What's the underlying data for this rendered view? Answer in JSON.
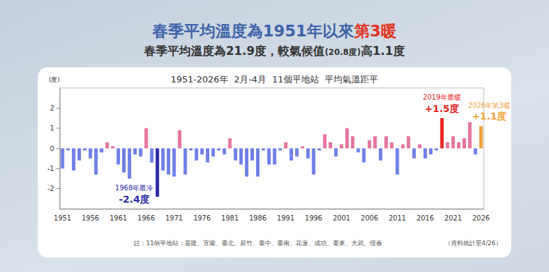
{
  "title": "春季平均溫度為1951年以來第3暖",
  "title_highlight": "第3暖",
  "subtitle": "春季平均溫度為21.9度，較氣候值(20.8度)高1.1度",
  "footnote": "註：11個平地站：基隆、宜蘭、臺北、新竹、臺中、臺南、花蓮、成功、臺東、大武、恆春",
  "source": "（資料統計至4/26）",
  "chart_data": {
    "type": "bar",
    "title": "1951-2026年  2月-4月  11個平地站  平均氣溫距平",
    "y_label": "(度)",
    "categories": [
      "1951",
      null,
      null,
      null,
      null,
      "1956",
      null,
      null,
      null,
      null,
      "1961",
      null,
      null,
      null,
      null,
      "1966",
      null,
      null,
      null,
      null,
      "1971",
      null,
      null,
      null,
      null,
      "1976",
      null,
      null,
      null,
      null,
      "1981",
      null,
      null,
      null,
      null,
      "1986",
      null,
      null,
      null,
      null,
      "1991",
      null,
      null,
      null,
      null,
      "1996",
      null,
      null,
      null,
      null,
      "2001",
      null,
      null,
      null,
      null,
      "2006",
      null,
      null,
      null,
      null,
      "2011",
      null,
      null,
      null,
      null,
      "2016",
      null,
      null,
      null,
      null,
      "2021",
      null,
      null,
      null,
      null,
      "2026"
    ],
    "values": [
      -1.0,
      -0.1,
      -1.1,
      -0.6,
      -0.1,
      -0.5,
      -1.3,
      -0.2,
      0.3,
      0.1,
      -0.8,
      -1.2,
      -1.5,
      -0.3,
      -0.4,
      1.0,
      -0.7,
      -2.4,
      -1.1,
      -1.3,
      -1.4,
      0.9,
      -1.3,
      -0.1,
      -0.6,
      -0.3,
      -0.7,
      -0.4,
      -0.1,
      -0.3,
      0.5,
      -0.6,
      -0.8,
      -1.4,
      -0.6,
      -1.4,
      -0.1,
      -0.8,
      -0.8,
      -0.1,
      0.3,
      -0.6,
      -0.4,
      0.1,
      -0.5,
      -1.3,
      -0.1,
      0.7,
      0.3,
      -0.4,
      0.2,
      1.0,
      0.6,
      -0.2,
      -0.7,
      0.4,
      0.6,
      -0.6,
      0.6,
      0.3,
      -1.3,
      0.2,
      0.6,
      -0.5,
      0.2,
      -0.5,
      -0.3,
      -0.1,
      1.5,
      0.3,
      0.6,
      0.3,
      0.5,
      1.3,
      -0.3,
      1.1
    ],
    "colors": [
      "#6f7fe8",
      "#6f7fe8",
      "#6f7fe8",
      "#6f7fe8",
      "#6f7fe8",
      "#6f7fe8",
      "#6f7fe8",
      "#6f7fe8",
      "#e6739f",
      "#e6739f",
      "#6f7fe8",
      "#6f7fe8",
      "#6f7fe8",
      "#6f7fe8",
      "#6f7fe8",
      "#e6739f",
      "#6f7fe8",
      "#2b2ba6",
      "#6f7fe8",
      "#6f7fe8",
      "#6f7fe8",
      "#e6739f",
      "#6f7fe8",
      "#6f7fe8",
      "#6f7fe8",
      "#6f7fe8",
      "#6f7fe8",
      "#6f7fe8",
      "#6f7fe8",
      "#6f7fe8",
      "#e6739f",
      "#6f7fe8",
      "#6f7fe8",
      "#6f7fe8",
      "#6f7fe8",
      "#6f7fe8",
      "#6f7fe8",
      "#6f7fe8",
      "#6f7fe8",
      "#6f7fe8",
      "#e6739f",
      "#6f7fe8",
      "#6f7fe8",
      "#e6739f",
      "#6f7fe8",
      "#6f7fe8",
      "#6f7fe8",
      "#e6739f",
      "#e6739f",
      "#6f7fe8",
      "#e6739f",
      "#e6739f",
      "#e6739f",
      "#6f7fe8",
      "#6f7fe8",
      "#e6739f",
      "#e6739f",
      "#6f7fe8",
      "#e6739f",
      "#e6739f",
      "#6f7fe8",
      "#e6739f",
      "#e6739f",
      "#6f7fe8",
      "#e6739f",
      "#6f7fe8",
      "#6f7fe8",
      "#6f7fe8",
      "#e8231f",
      "#e6739f",
      "#e6739f",
      "#e6739f",
      "#e6739f",
      "#e6739f",
      "#6f7fe8",
      "#f0a33a"
    ],
    "annotations": [
      null,
      null,
      null,
      null,
      null,
      null,
      null,
      null,
      null,
      null,
      null,
      null,
      null,
      null,
      null,
      null,
      null,
      "1968年最冷",
      null,
      null,
      null,
      null,
      null,
      null,
      null,
      null,
      null,
      null,
      null,
      null,
      null,
      null,
      null,
      null,
      null,
      null,
      null,
      null,
      null,
      null,
      null,
      null,
      null,
      null,
      null,
      null,
      null,
      null,
      null,
      null,
      null,
      null,
      null,
      null,
      null,
      null,
      null,
      null,
      null,
      null,
      null,
      null,
      null,
      null,
      null,
      null,
      null,
      null,
      "2019年最暖",
      null,
      null,
      null,
      null,
      null,
      null,
      "2026年第3暖"
    ],
    "value_labels": [
      null,
      null,
      null,
      null,
      null,
      null,
      null,
      null,
      null,
      null,
      null,
      null,
      null,
      null,
      null,
      null,
      null,
      "-2.4度",
      null,
      null,
      null,
      null,
      null,
      null,
      null,
      null,
      null,
      null,
      null,
      null,
      null,
      null,
      null,
      null,
      null,
      null,
      null,
      null,
      null,
      null,
      null,
      null,
      null,
      null,
      null,
      null,
      null,
      null,
      null,
      null,
      null,
      null,
      null,
      null,
      null,
      null,
      null,
      null,
      null,
      null,
      null,
      null,
      null,
      null,
      null,
      null,
      null,
      null,
      "+1.5度",
      null,
      null,
      null,
      null,
      null,
      null,
      "+1.1度"
    ],
    "ylim": [
      -3,
      3
    ],
    "yticks": [
      -2,
      -1,
      0,
      1,
      2
    ],
    "grid": false
  }
}
